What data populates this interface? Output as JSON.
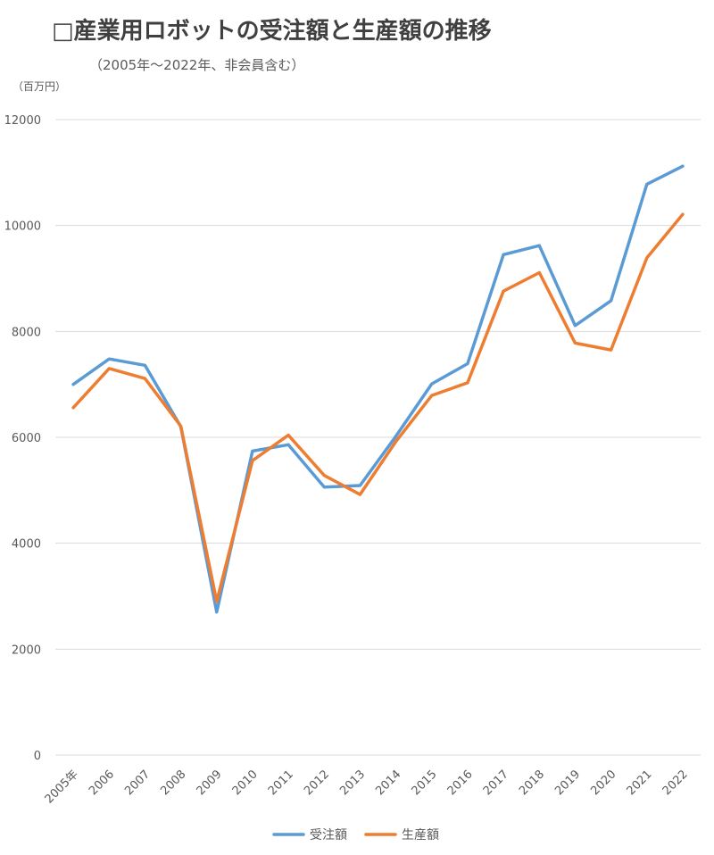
{
  "chart_data": {
    "type": "line",
    "title": "□産業用ロボットの受注額と生産額の推移",
    "subtitle": "（2005年～2022年、非会員含む）",
    "ylabel": "（百万円）",
    "xlabel": "",
    "categories": [
      "2005年",
      "2006",
      "2007",
      "2008",
      "2009",
      "2010",
      "2011",
      "2012",
      "2013",
      "2014",
      "2015",
      "2016",
      "2017",
      "2018",
      "2019",
      "2020",
      "2021",
      "2022"
    ],
    "ylim": [
      0,
      12000
    ],
    "yticks": [
      0,
      2000,
      4000,
      6000,
      8000,
      10000,
      12000
    ],
    "grid": true,
    "legend_position": "bottom",
    "series": [
      {
        "name": "受注額",
        "color": "#5b9bd5",
        "values": [
          7000,
          7480,
          7360,
          6200,
          2700,
          5740,
          5860,
          5060,
          5090,
          6020,
          7010,
          7390,
          9450,
          9620,
          8110,
          8580,
          10780,
          11120
        ]
      },
      {
        "name": "生産額",
        "color": "#ed7d31",
        "values": [
          6560,
          7300,
          7110,
          6210,
          2900,
          5560,
          6040,
          5280,
          4920,
          5920,
          6790,
          7030,
          8760,
          9110,
          7780,
          7650,
          9390,
          10210
        ]
      }
    ]
  }
}
